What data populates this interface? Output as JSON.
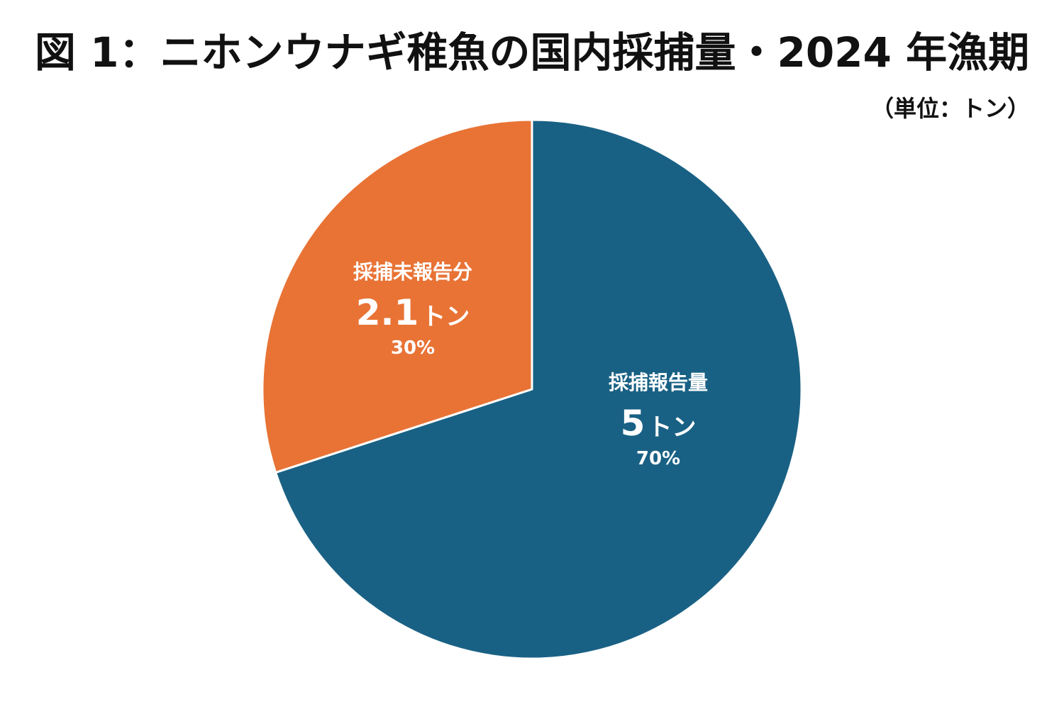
{
  "title": "図 1：ニホンウナギ稚魚の国内採捕量・2024 年漁期",
  "unit_label": "（単位：トン）",
  "chart_data": {
    "type": "pie",
    "unit": "トン",
    "slices": [
      {
        "label": "採捕報告量",
        "value": 5,
        "value_text": "5",
        "unit_text": "トン",
        "percent": 70,
        "percent_text": "70%",
        "color": "#196184"
      },
      {
        "label": "採捕未報告分",
        "value": 2.1,
        "value_text": "2.1",
        "unit_text": "トン",
        "percent": 30,
        "percent_text": "30%",
        "color": "#e87335"
      }
    ]
  }
}
